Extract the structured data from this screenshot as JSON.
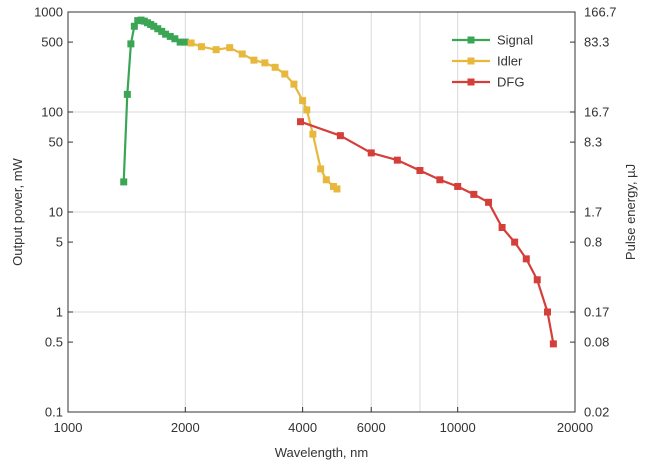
{
  "chart_data": {
    "type": "line",
    "title": "",
    "xlabel": "Wavelength, nm",
    "ylabel": "Output power, mW",
    "y2label": "Pulse energy, µJ",
    "x_scale": "log",
    "y_scale": "log",
    "xlim": [
      1000,
      20000
    ],
    "ylim": [
      0.1,
      1000
    ],
    "grid": true,
    "legend_position": "top-right",
    "x_ticks": [
      {
        "value": 1000,
        "label": "1000"
      },
      {
        "value": 2000,
        "label": "2000"
      },
      {
        "value": 4000,
        "label": "4000"
      },
      {
        "value": 6000,
        "label": "6000"
      },
      {
        "value": 10000,
        "label": "10000"
      },
      {
        "value": 20000,
        "label": "20000"
      }
    ],
    "x_grid_values": [
      2000,
      4000,
      6000,
      8000,
      10000
    ],
    "y_ticks_left": [
      {
        "value": 1000,
        "label": "1000"
      },
      {
        "value": 500,
        "label": "500"
      },
      {
        "value": 100,
        "label": "100"
      },
      {
        "value": 50,
        "label": "50"
      },
      {
        "value": 10,
        "label": "10"
      },
      {
        "value": 5,
        "label": "5"
      },
      {
        "value": 1,
        "label": "1"
      },
      {
        "value": 0.5,
        "label": "0.5"
      },
      {
        "value": 0.1,
        "label": "0.1"
      }
    ],
    "y_ticks_right": [
      {
        "value": 1000,
        "label": "166.7"
      },
      {
        "value": 500,
        "label": "83.3"
      },
      {
        "value": 100,
        "label": "16.7"
      },
      {
        "value": 50,
        "label": "8.3"
      },
      {
        "value": 10,
        "label": "1.7"
      },
      {
        "value": 5,
        "label": "0.8"
      },
      {
        "value": 1,
        "label": "0.17"
      },
      {
        "value": 0.5,
        "label": "0.08"
      },
      {
        "value": 0.1,
        "label": "0.02"
      }
    ],
    "y_grid_values": [
      1000,
      100,
      10,
      1,
      0.1
    ],
    "series": [
      {
        "name": "Signal",
        "color": "#3aa655",
        "points": [
          [
            1390,
            20
          ],
          [
            1420,
            150
          ],
          [
            1450,
            480
          ],
          [
            1480,
            720
          ],
          [
            1510,
            820
          ],
          [
            1540,
            830
          ],
          [
            1570,
            810
          ],
          [
            1600,
            780
          ],
          [
            1630,
            750
          ],
          [
            1660,
            720
          ],
          [
            1700,
            680
          ],
          [
            1740,
            640
          ],
          [
            1780,
            600
          ],
          [
            1830,
            570
          ],
          [
            1880,
            540
          ],
          [
            1940,
            500
          ],
          [
            2000,
            500
          ]
        ]
      },
      {
        "name": "Idler",
        "color": "#e8b83c",
        "points": [
          [
            2070,
            490
          ],
          [
            2200,
            450
          ],
          [
            2400,
            420
          ],
          [
            2600,
            440
          ],
          [
            2800,
            380
          ],
          [
            3000,
            330
          ],
          [
            3200,
            310
          ],
          [
            3400,
            280
          ],
          [
            3600,
            240
          ],
          [
            3800,
            190
          ],
          [
            4000,
            130
          ],
          [
            4100,
            105
          ],
          [
            4250,
            60
          ],
          [
            4450,
            27
          ],
          [
            4600,
            21
          ],
          [
            4800,
            18
          ],
          [
            4900,
            17
          ]
        ]
      },
      {
        "name": "DFG",
        "color": "#d43f3a",
        "points": [
          [
            3950,
            80
          ],
          [
            5000,
            58
          ],
          [
            6000,
            39
          ],
          [
            7000,
            33
          ],
          [
            8000,
            26
          ],
          [
            9000,
            21
          ],
          [
            10000,
            18
          ],
          [
            11000,
            15
          ],
          [
            12000,
            12.5
          ],
          [
            13000,
            7
          ],
          [
            14000,
            5
          ],
          [
            15000,
            3.4
          ],
          [
            16000,
            2.1
          ],
          [
            17000,
            1
          ],
          [
            17600,
            0.48
          ]
        ]
      }
    ]
  }
}
